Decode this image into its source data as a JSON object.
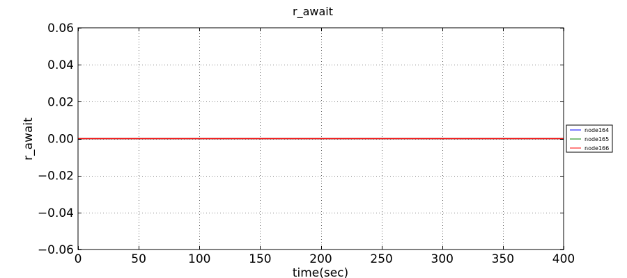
{
  "chart_data": {
    "type": "line",
    "title": "r_await",
    "xlabel": "time(sec)",
    "ylabel": "r_await",
    "xlim": [
      0,
      400
    ],
    "ylim": [
      -0.06,
      0.06
    ],
    "xticks": [
      0,
      50,
      100,
      150,
      200,
      250,
      300,
      350,
      400
    ],
    "xtick_labels": [
      "0",
      "50",
      "100",
      "150",
      "200",
      "250",
      "300",
      "350",
      "400"
    ],
    "yticks": [
      0.06,
      0.04,
      0.02,
      0.0,
      -0.02,
      -0.04,
      -0.06
    ],
    "ytick_labels": [
      "0.06",
      "0.04",
      "0.02",
      "0.00",
      "−0.02",
      "−0.04",
      "−0.06"
    ],
    "grid": true,
    "legend_position": "right",
    "series": [
      {
        "name": "node164",
        "color": "#0000ff",
        "x": [
          0,
          400
        ],
        "y": [
          0,
          0
        ]
      },
      {
        "name": "node165",
        "color": "#008000",
        "x": [
          0,
          400
        ],
        "y": [
          0,
          0
        ]
      },
      {
        "name": "node166",
        "color": "#ff0000",
        "x": [
          0,
          400
        ],
        "y": [
          0,
          0
        ]
      }
    ]
  }
}
